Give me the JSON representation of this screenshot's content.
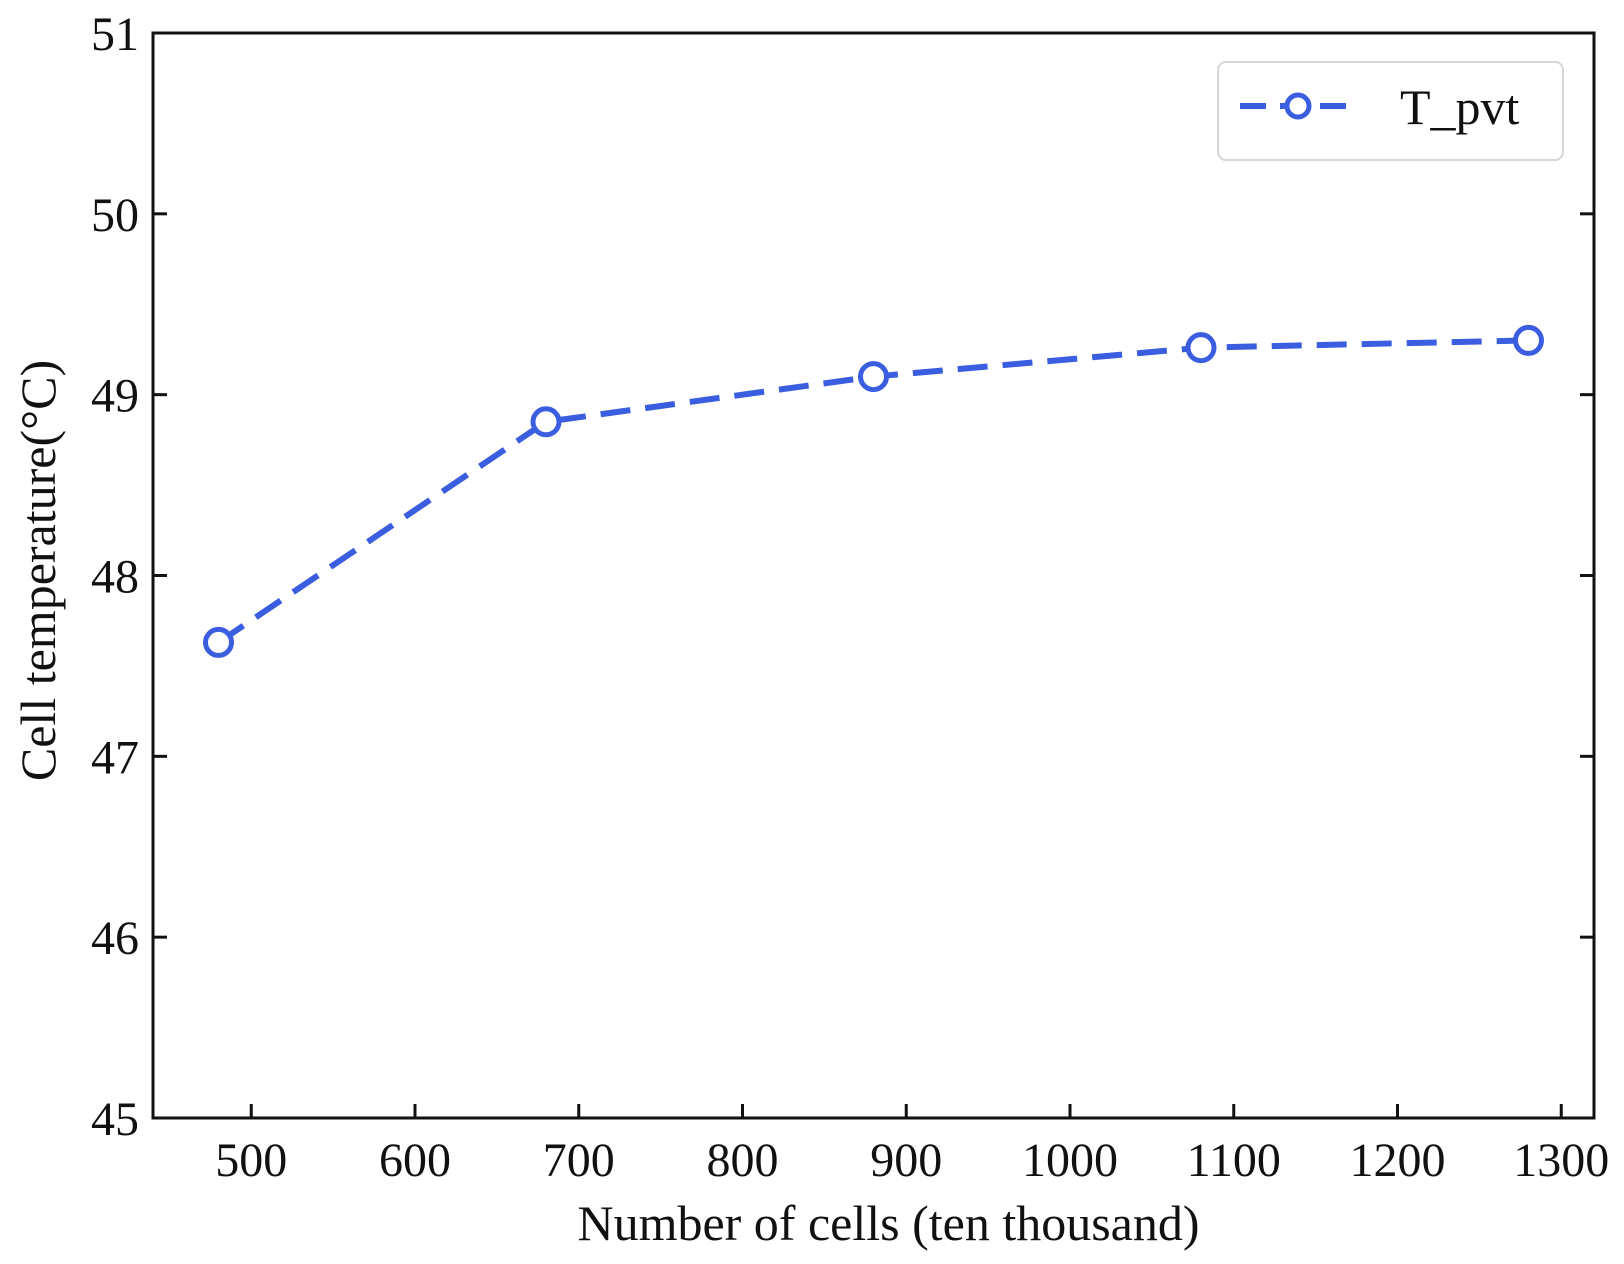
{
  "chart_data": {
    "type": "line",
    "title": "",
    "xlabel": "Number of cells (ten thousand)",
    "ylabel": "Cell temperature(°C)",
    "xlim": [
      440,
      1320
    ],
    "ylim": [
      45,
      51
    ],
    "xticks": [
      500,
      600,
      700,
      800,
      900,
      1000,
      1100,
      1200,
      1300
    ],
    "yticks": [
      45,
      46,
      47,
      48,
      49,
      50,
      51
    ],
    "series": [
      {
        "name": "T_pvt",
        "x": [
          480,
          680,
          880,
          1080,
          1280
        ],
        "values": [
          47.63,
          48.85,
          49.1,
          49.26,
          49.3
        ],
        "color": "#3b5ee0",
        "line_style": "dashed",
        "marker": "open-circle"
      }
    ],
    "legend_position": "top-right",
    "grid": false
  }
}
